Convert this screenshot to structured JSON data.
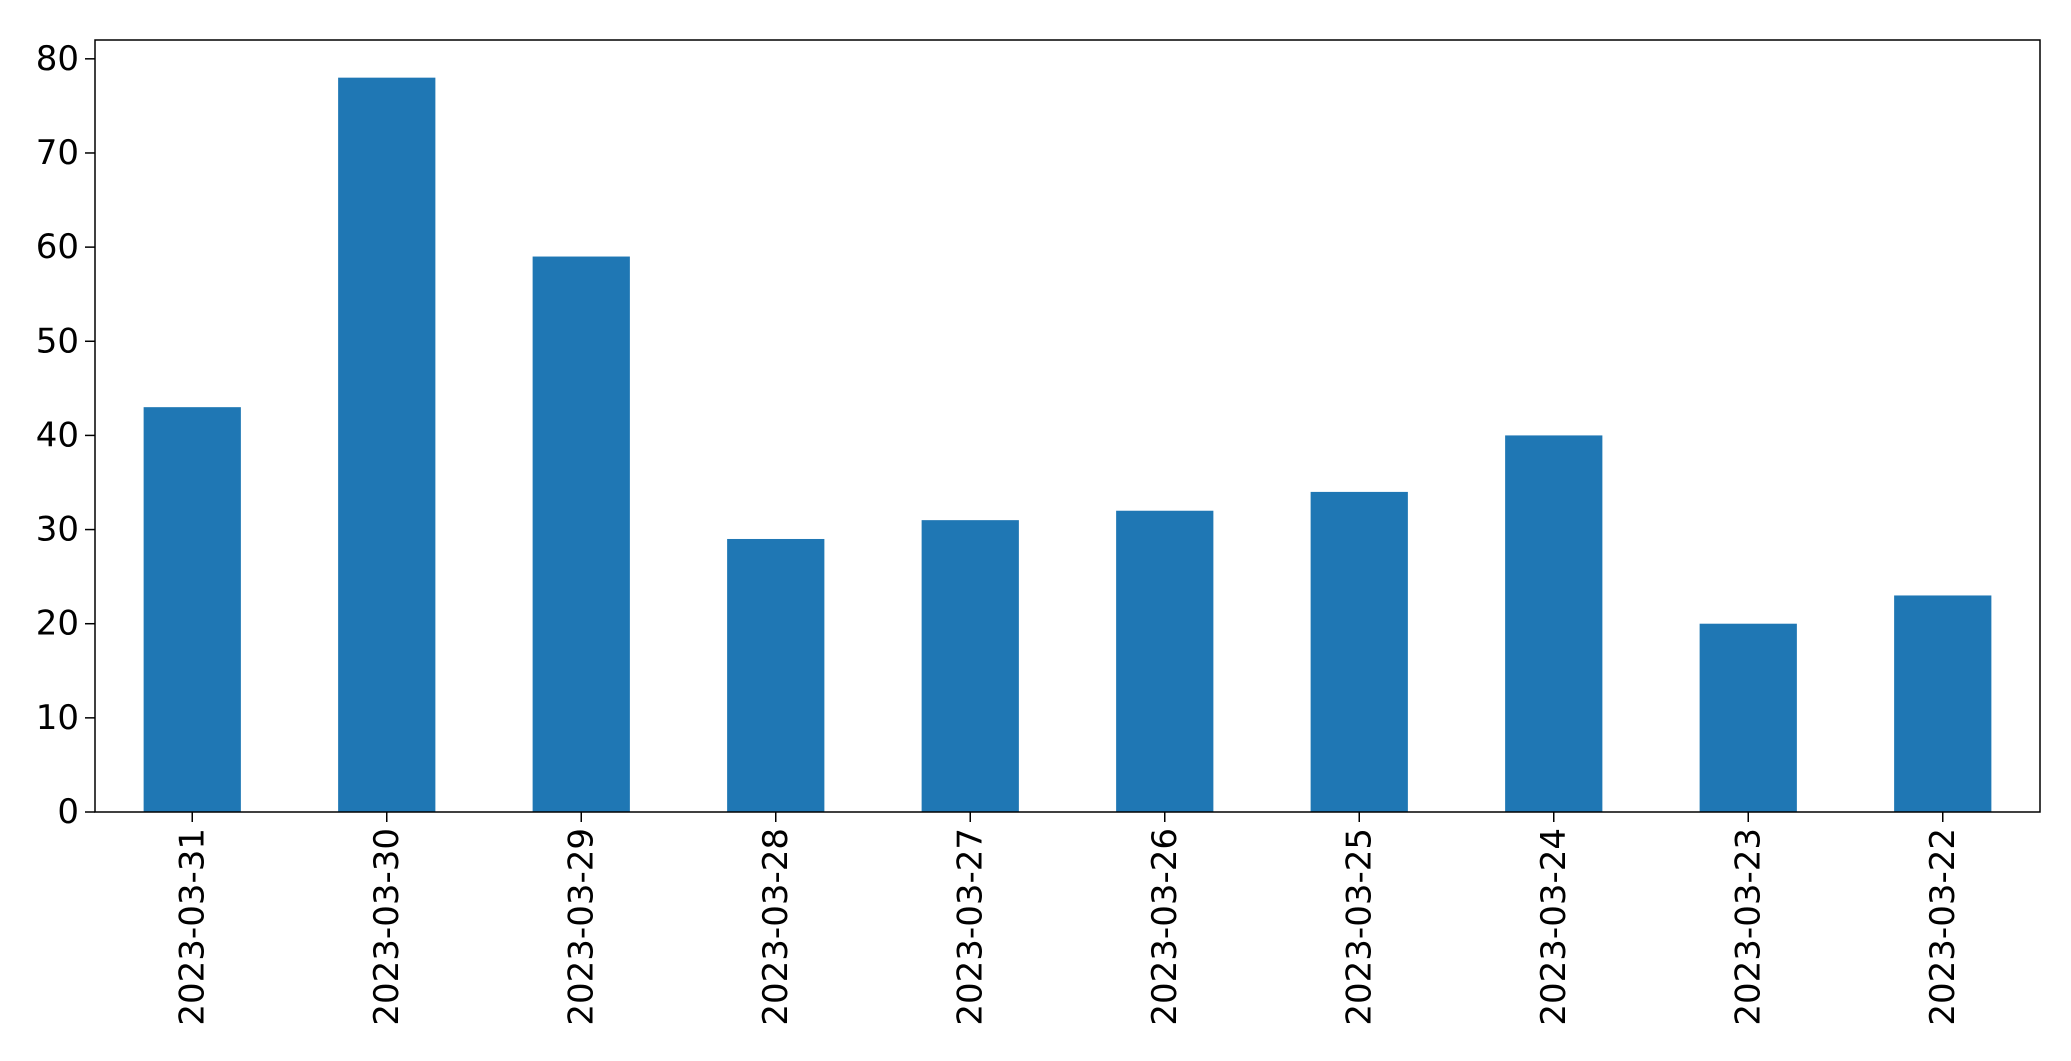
{
  "chart_data": {
    "type": "bar",
    "title": "",
    "xlabel": "",
    "ylabel": "",
    "categories": [
      "2023-03-31",
      "2023-03-30",
      "2023-03-29",
      "2023-03-28",
      "2023-03-27",
      "2023-03-26",
      "2023-03-25",
      "2023-03-24",
      "2023-03-23",
      "2023-03-22"
    ],
    "values": [
      43,
      78,
      59,
      29,
      31,
      32,
      34,
      40,
      20,
      23
    ],
    "ylim": [
      0,
      82
    ],
    "yticks": [
      0,
      10,
      20,
      30,
      40,
      50,
      60,
      70,
      80
    ],
    "grid": false,
    "legend": "none",
    "bar_color": "#1f77b4"
  }
}
